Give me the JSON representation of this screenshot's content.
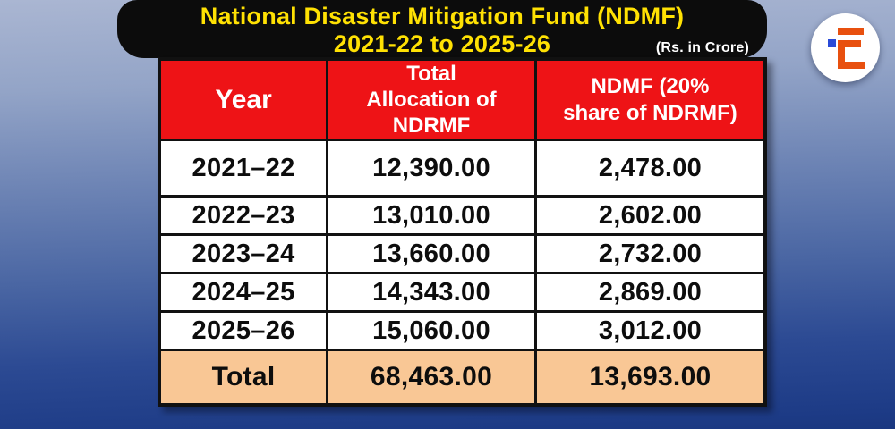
{
  "banner": {
    "title_line1": "National Disaster Mitigation Fund (NDMF)",
    "title_line2": "2021-22 to 2025-26",
    "unit_note": "(Rs. in Crore)"
  },
  "logo": {
    "name": "iE monogram"
  },
  "table": {
    "headers": [
      {
        "lines": [
          "Year"
        ]
      },
      {
        "lines": [
          "Total",
          "Allocation of",
          "NDRMF"
        ]
      },
      {
        "lines": [
          "NDMF (20%",
          "share of NDRMF)"
        ]
      }
    ],
    "rows": [
      {
        "year": "2021–22",
        "ndrmf": "12,390.00",
        "ndmf": "2,478.00"
      },
      {
        "year": "2022–23",
        "ndrmf": "13,010.00",
        "ndmf": "2,602.00"
      },
      {
        "year": "2023–24",
        "ndrmf": "13,660.00",
        "ndmf": "2,732.00"
      },
      {
        "year": "2024–25",
        "ndrmf": "14,343.00",
        "ndmf": "2,869.00"
      },
      {
        "year": "2025–26",
        "ndrmf": "15,060.00",
        "ndmf": "3,012.00"
      }
    ],
    "total": {
      "label": "Total",
      "ndrmf": "68,463.00",
      "ndmf": "13,693.00"
    }
  },
  "colors": {
    "header_bg": "#ee1316",
    "total_row_bg": "#f9c795",
    "banner_bg": "#0c0c0c",
    "title_text": "#ffe103",
    "unit_note_text": "#ffffff",
    "background_top": "#aab6d2",
    "background_bottom": "#1d3b86",
    "logo_bar": "#e8500f",
    "logo_dot": "#2a4bd8",
    "table_border": "#111111"
  },
  "chart_data": {
    "type": "table",
    "title": "National Disaster Mitigation Fund (NDMF) 2021-22 to 2025-26",
    "unit": "Rs. in Crore",
    "columns": [
      "Year",
      "Total Allocation of NDRMF",
      "NDMF (20% share of NDRMF)"
    ],
    "rows": [
      [
        "2021-22",
        12390.0,
        2478.0
      ],
      [
        "2022-23",
        13010.0,
        2602.0
      ],
      [
        "2023-24",
        13660.0,
        2732.0
      ],
      [
        "2024-25",
        14343.0,
        2869.0
      ],
      [
        "2025-26",
        15060.0,
        3012.0
      ]
    ],
    "total_row": [
      "Total",
      68463.0,
      13693.0
    ],
    "note": "NDMF is 20% share of NDRMF"
  }
}
